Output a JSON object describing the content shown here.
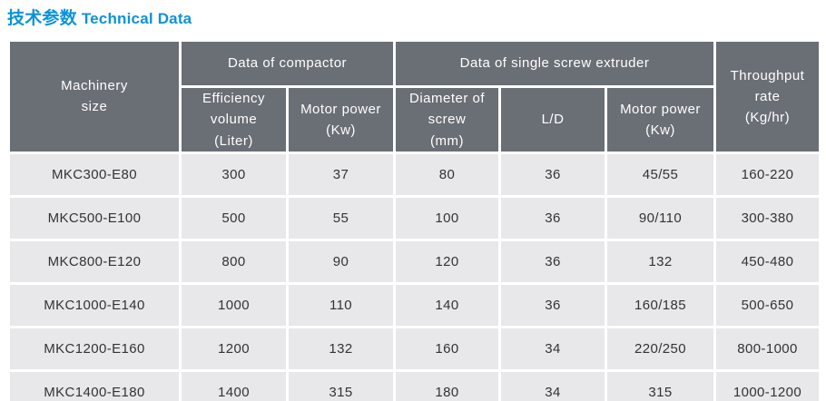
{
  "title": {
    "cn": "技术参数",
    "en": "Technical Data"
  },
  "colors": {
    "accent": "#0C93D8",
    "header_bg": "#6A6E75",
    "header_text": "#FFFFFF",
    "row_bg": "#E8E8EA",
    "cell_text": "#333333",
    "divider": "#FFFFFF"
  },
  "table": {
    "group_headers": {
      "machinery": "Machinery\nsize",
      "compactor": "Data of compactor",
      "extruder": "Data of single screw extruder",
      "throughput": "Throughput\nrate\n(Kg/hr)"
    },
    "sub_headers": [
      "Efficiency volume\n(Liter)",
      "Motor power\n(Kw)",
      "Diameter of screw\n(mm)",
      "L/D",
      "Motor power\n(Kw)"
    ],
    "rows": [
      [
        "MKC300-E80",
        "300",
        "37",
        "80",
        "36",
        "45/55",
        "160-220"
      ],
      [
        "MKC500-E100",
        "500",
        "55",
        "100",
        "36",
        "90/110",
        "300-380"
      ],
      [
        "MKC800-E120",
        "800",
        "90",
        "120",
        "36",
        "132",
        "450-480"
      ],
      [
        "MKC1000-E140",
        "1000",
        "110",
        "140",
        "36",
        "160/185",
        "500-650"
      ],
      [
        "MKC1200-E160",
        "1200",
        "132",
        "160",
        "34",
        "220/250",
        "800-1000"
      ],
      [
        "MKC1400-E180",
        "1400",
        "315",
        "180",
        "34",
        "315",
        "1000-1200"
      ]
    ]
  }
}
